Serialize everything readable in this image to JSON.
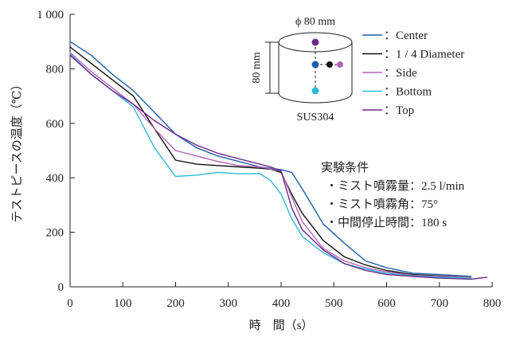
{
  "chart_data": {
    "type": "line",
    "xlabel": "時　間（s）",
    "ylabel": "テストピースの温度（℃）",
    "xlim": [
      0,
      800
    ],
    "ylim": [
      0,
      1000
    ],
    "xticks": [
      0,
      100,
      200,
      300,
      400,
      500,
      600,
      700,
      800
    ],
    "yticks": [
      0,
      200,
      400,
      600,
      800,
      1000
    ],
    "xtick_labels": [
      "0",
      "100",
      "200",
      "300",
      "400",
      "500",
      "600",
      "700",
      "800"
    ],
    "ytick_labels": [
      "0",
      "200",
      "400",
      "600",
      "800",
      "1 000"
    ],
    "grid": false,
    "legend_position": "top-right",
    "series": [
      {
        "name": "Center",
        "label": "：Center",
        "color": "#1f5fa8",
        "x": [
          0,
          40,
          80,
          120,
          160,
          200,
          240,
          280,
          320,
          360,
          400,
          420,
          440,
          480,
          520,
          560,
          600,
          650,
          700,
          760
        ],
        "y": [
          900,
          850,
          780,
          720,
          640,
          560,
          510,
          480,
          460,
          440,
          430,
          420,
          360,
          230,
          160,
          95,
          70,
          50,
          45,
          38
        ]
      },
      {
        "name": "1 / 4 Diameter",
        "label": "：1 / 4 Diameter",
        "color": "#111111",
        "x": [
          0,
          40,
          80,
          120,
          160,
          200,
          240,
          280,
          320,
          360,
          380,
          400,
          420,
          440,
          480,
          520,
          560,
          600,
          650,
          700,
          760
        ],
        "y": [
          880,
          820,
          760,
          700,
          580,
          465,
          450,
          445,
          440,
          435,
          432,
          420,
          340,
          270,
          170,
          110,
          80,
          60,
          45,
          40,
          35
        ]
      },
      {
        "name": "Side",
        "label": "：Side",
        "color": "#b565b5",
        "x": [
          0,
          40,
          80,
          120,
          160,
          200,
          240,
          280,
          320,
          360,
          400,
          420,
          440,
          480,
          520,
          560,
          600,
          650,
          700,
          760
        ],
        "y": [
          860,
          790,
          730,
          670,
          580,
          500,
          480,
          460,
          445,
          440,
          425,
          330,
          240,
          140,
          95,
          70,
          55,
          42,
          38,
          35
        ]
      },
      {
        "name": "Bottom",
        "label": "：Bottom",
        "color": "#30b8d8",
        "x": [
          0,
          40,
          80,
          120,
          160,
          200,
          240,
          280,
          320,
          360,
          380,
          400,
          420,
          440,
          480,
          520,
          560,
          600,
          650,
          700,
          760
        ],
        "y": [
          855,
          780,
          720,
          660,
          510,
          405,
          410,
          420,
          415,
          415,
          390,
          340,
          250,
          185,
          125,
          85,
          65,
          50,
          40,
          35,
          32
        ]
      },
      {
        "name": "Top",
        "label": "：Top",
        "color": "#6a2a8a",
        "x": [
          0,
          40,
          80,
          120,
          160,
          200,
          240,
          280,
          320,
          360,
          380,
          400,
          420,
          440,
          480,
          520,
          560,
          600,
          650,
          700,
          760,
          790
        ],
        "y": [
          850,
          780,
          720,
          670,
          610,
          560,
          520,
          490,
          470,
          450,
          440,
          425,
          290,
          210,
          135,
          85,
          60,
          45,
          38,
          32,
          28,
          35
        ]
      }
    ],
    "inset": {
      "diameter_label": "ϕ 80 mm",
      "height_label": "80 mm",
      "material_label": "SUS304"
    },
    "conditions": {
      "title": "実験条件",
      "items": [
        "・ミスト噴霧量：2.5 l/min",
        "・ミスト噴霧角：75°",
        "・中間停止時間：180 s"
      ]
    }
  }
}
